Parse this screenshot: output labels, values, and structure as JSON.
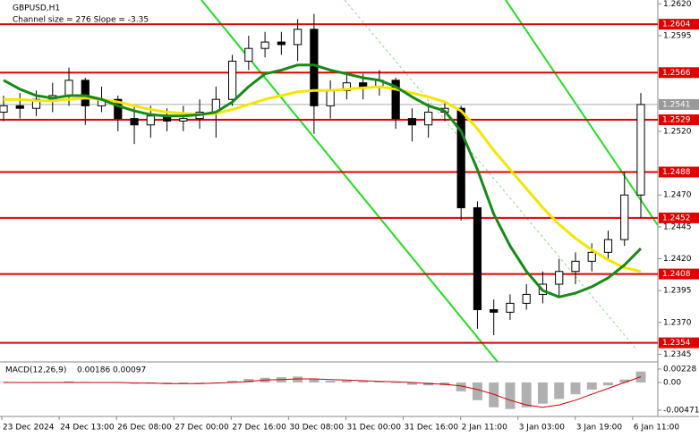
{
  "chart_data": {
    "type": "candlestick",
    "title": "GBPUSD,H1",
    "subtitle": "Channel size = 276 Slope = -3.35",
    "x_labels": [
      "23 Dec 2024",
      "24 Dec 13:00",
      "26 Dec 08:00",
      "27 Dec 00:00",
      "27 Dec 16:00",
      "30 Dec 08:00",
      "31 Dec 00:00",
      "31 Dec 16:00",
      "2 Jan 11:00",
      "3 Jan 03:00",
      "3 Jan 19:00",
      "6 Jan 11:00"
    ],
    "open": [
      1.2535,
      1.254,
      1.2538,
      1.2545,
      1.2548,
      1.256,
      1.254,
      1.2545,
      1.253,
      1.2525,
      1.2532,
      1.2528,
      1.253,
      1.2535,
      1.2545,
      1.2575,
      1.2585,
      1.259,
      1.2588,
      1.26,
      1.254,
      1.2552,
      1.2558,
      1.2555,
      1.256,
      1.253,
      1.2525,
      1.2535,
      1.2538,
      1.246,
      1.238,
      1.2378,
      1.2385,
      1.2392,
      1.24,
      1.241,
      1.2418,
      1.2425,
      1.2435,
      1.247
    ],
    "high": [
      1.2548,
      1.255,
      1.2552,
      1.2558,
      1.257,
      1.2562,
      1.2555,
      1.2548,
      1.254,
      1.254,
      1.2538,
      1.254,
      1.2545,
      1.2555,
      1.258,
      1.2595,
      1.2598,
      1.2598,
      1.2608,
      1.2612,
      1.256,
      1.2565,
      1.2565,
      1.2568,
      1.2562,
      1.2538,
      1.2542,
      1.2542,
      1.254,
      1.2465,
      1.2388,
      1.2392,
      1.24,
      1.241,
      1.242,
      1.2425,
      1.2432,
      1.2442,
      1.2488,
      1.255
    ],
    "low": [
      1.2528,
      1.253,
      1.2532,
      1.2535,
      1.254,
      1.2525,
      1.2535,
      1.252,
      1.251,
      1.2515,
      1.252,
      1.252,
      1.2522,
      1.2515,
      1.254,
      1.2568,
      1.2578,
      1.258,
      1.2575,
      1.2518,
      1.253,
      1.2545,
      1.2545,
      1.2548,
      1.2522,
      1.2512,
      1.2515,
      1.2528,
      1.245,
      1.2365,
      1.236,
      1.2372,
      1.238,
      1.2385,
      1.239,
      1.24,
      1.241,
      1.242,
      1.243,
      1.2452
    ],
    "close": [
      1.254,
      1.2538,
      1.2545,
      1.2548,
      1.256,
      1.254,
      1.2545,
      1.253,
      1.2525,
      1.2532,
      1.2528,
      1.253,
      1.2535,
      1.2545,
      1.2575,
      1.2585,
      1.259,
      1.2588,
      1.26,
      1.254,
      1.2552,
      1.2558,
      1.2555,
      1.256,
      1.253,
      1.2525,
      1.2535,
      1.2538,
      1.246,
      1.238,
      1.2378,
      1.2385,
      1.2392,
      1.24,
      1.241,
      1.2418,
      1.2425,
      1.2435,
      1.247,
      1.2541
    ],
    "candle_color": "#000000",
    "moving_averages": [
      {
        "color": "#f5e500",
        "values": [
          1.2545,
          1.2545,
          1.2544,
          1.2544,
          1.2545,
          1.2546,
          1.2545,
          1.2543,
          1.254,
          1.2537,
          1.2535,
          1.2534,
          1.2533,
          1.2534,
          1.2537,
          1.2541,
          1.2545,
          1.2548,
          1.2551,
          1.2552,
          1.2552,
          1.2553,
          1.2554,
          1.2555,
          1.2553,
          1.255,
          1.2547,
          1.2543,
          1.2536,
          1.2522,
          1.2505,
          1.249,
          1.2475,
          1.246,
          1.2447,
          1.2436,
          1.2427,
          1.2419,
          1.2413,
          1.241
        ]
      },
      {
        "color": "#168a16",
        "values": [
          1.256,
          1.2553,
          1.2548,
          1.2546,
          1.2548,
          1.2548,
          1.2545,
          1.254,
          1.2536,
          1.2533,
          1.2532,
          1.2532,
          1.2533,
          1.2535,
          1.2543,
          1.2555,
          1.2565,
          1.2568,
          1.2572,
          1.2572,
          1.2568,
          1.2565,
          1.2562,
          1.256,
          1.2555,
          1.2547,
          1.254,
          1.2536,
          1.252,
          1.249,
          1.2455,
          1.243,
          1.241,
          1.2395,
          1.239,
          1.2393,
          1.2398,
          1.2405,
          1.2415,
          1.2428
        ]
      }
    ],
    "levels": [
      1.2604,
      1.2566,
      1.2529,
      1.2488,
      1.2452,
      1.2408,
      1.2354
    ],
    "level_color": "#e00000",
    "ylim": [
      1.2339,
      1.2623
    ],
    "yticks": [
      {
        "value": 1.262,
        "label": "1.2620"
      },
      1.2595,
      {
        "value": 1.252,
        "label": "1.2520"
      },
      {
        "value": 1.247,
        "label": "1.2470"
      },
      1.2445,
      {
        "value": 1.242,
        "label": "1.2420"
      },
      1.2395,
      {
        "value": 1.237,
        "label": "1.2370"
      },
      1.2345
    ],
    "macd": {
      "title": "MACD(12,26,9)",
      "values": [
        0.0001,
        0.0,
        -0.0001,
        0.0,
        0.0002,
        0.0001,
        0.0,
        -0.0001,
        -0.0002,
        -0.0002,
        -0.0002,
        -0.0002,
        -0.0001,
        0.0,
        0.0003,
        0.0006,
        0.0008,
        0.0009,
        0.001,
        0.0006,
        0.0003,
        0.0003,
        0.0002,
        0.0002,
        -0.0001,
        -0.0004,
        -0.0005,
        -0.0005,
        -0.0015,
        -0.003,
        -0.0042,
        -0.0045,
        -0.0042,
        -0.0036,
        -0.0028,
        -0.002,
        -0.0012,
        -0.0005,
        0.0005,
        0.00186
      ],
      "signal": [
        0.0,
        0.0,
        0.0,
        0.0,
        0.0,
        0.0,
        0.0,
        0.0,
        -0.0001,
        -0.0001,
        -0.0002,
        -0.0002,
        -0.0002,
        -0.0001,
        0.0,
        0.0002,
        0.0004,
        0.0005,
        0.0006,
        0.0006,
        0.0005,
        0.0004,
        0.0003,
        0.0002,
        0.0001,
        0.0,
        -0.0002,
        -0.0003,
        -0.0006,
        -0.0012,
        -0.002,
        -0.003,
        -0.0038,
        -0.0042,
        -0.0038,
        -0.003,
        -0.002,
        -0.001,
        0.0,
        0.00097
      ],
      "histogram_color": "#b0b0b0",
      "signal_color": "#cc0000",
      "ylim": [
        -0.00576,
        0.00318
      ],
      "yticks": [
        0.00228,
        {
          "value": 0,
          "label": "0.00"
        },
        -0.00471
      ]
    }
  }
}
